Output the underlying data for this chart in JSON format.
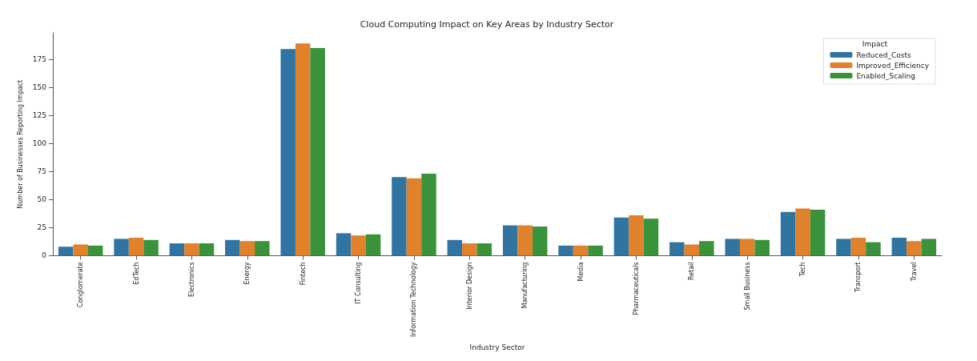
{
  "chart_data": {
    "type": "bar",
    "title": "Cloud Computing Impact on Key Areas by Industry Sector",
    "xlabel": "Industry Sector",
    "ylabel": "Number of Businesses Reporting Impact",
    "legend_title": "Impact",
    "legend": "top right",
    "grid": false,
    "categories": [
      "Conglomerate",
      "EdTech",
      "Electronics",
      "Energy",
      "Fintech",
      "IT Consulting",
      "Information Technology",
      "Interior Design",
      "Manufacturing",
      "Media",
      "Pharmaceuticals",
      "Retail",
      "Small Business",
      "Tech",
      "Transport",
      "Travel"
    ],
    "series": [
      {
        "name": "Reduced_Costs",
        "color": "#3274a1",
        "values": [
          8,
          15,
          11,
          14,
          184,
          20,
          70,
          14,
          27,
          9,
          34,
          12,
          15,
          39,
          15,
          16
        ]
      },
      {
        "name": "Improved_Efficiency",
        "color": "#e1812c",
        "values": [
          10,
          16,
          11,
          13,
          189,
          18,
          69,
          11,
          27,
          9,
          36,
          10,
          15,
          42,
          16,
          13
        ]
      },
      {
        "name": "Enabled_Scaling",
        "color": "#3a923a",
        "values": [
          9,
          14,
          11,
          13,
          185,
          19,
          73,
          11,
          26,
          9,
          33,
          13,
          14,
          41,
          12,
          15
        ]
      }
    ],
    "ylim": [
      0,
      198.5
    ],
    "yticks": [
      0,
      25,
      50,
      75,
      100,
      125,
      150,
      175
    ]
  }
}
